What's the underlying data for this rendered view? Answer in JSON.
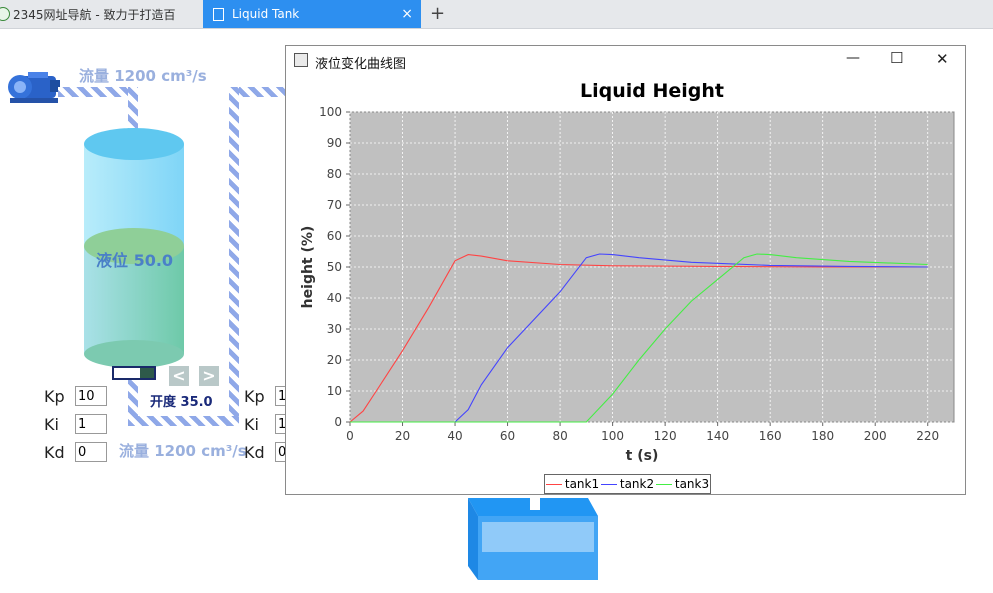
{
  "browser": {
    "tabs": [
      {
        "label": "2345网址导航 - 致力于打造百"
      },
      {
        "label": "Liquid Tank"
      }
    ],
    "close_label": "×",
    "newtab_label": "+"
  },
  "left_panel": {
    "flow_top": "流量 1200 cm³/s",
    "flow_bottom": "流量 1200 cm³/s",
    "level_label": "液位 50.0",
    "valve_label": "开度 35.0",
    "valve_fill": 0.35,
    "pid": [
      {
        "label": "Kp",
        "value": "10"
      },
      {
        "label": "Ki",
        "value": "1"
      },
      {
        "label": "Kd",
        "value": "0"
      }
    ],
    "pid2": [
      {
        "label": "Kp",
        "value": "1"
      },
      {
        "label": "Ki",
        "value": "1"
      },
      {
        "label": "Kd",
        "value": "0"
      }
    ]
  },
  "chart_window": {
    "title": "液位变化曲线图",
    "min_label": "—",
    "max_label": "☐",
    "close_label": "✕"
  },
  "chart_data": {
    "type": "line",
    "title": "Liquid Height",
    "xlabel": "t (s)",
    "ylabel": "height (%)",
    "xlim": [
      0,
      230
    ],
    "ylim": [
      0,
      100
    ],
    "xticks": [
      0,
      20,
      40,
      60,
      80,
      100,
      120,
      140,
      160,
      180,
      200,
      220
    ],
    "yticks": [
      0,
      10,
      20,
      30,
      40,
      50,
      60,
      70,
      80,
      90,
      100
    ],
    "grid": true,
    "legend": "bottom",
    "series": [
      {
        "name": "tank1",
        "color": "#ff4444",
        "x": [
          0,
          5,
          10,
          20,
          30,
          40,
          45,
          50,
          60,
          80,
          100,
          140,
          180,
          220
        ],
        "y": [
          0,
          3.5,
          10,
          23,
          37,
          52,
          54,
          53.5,
          52,
          50.8,
          50.4,
          50.2,
          50,
          50
        ]
      },
      {
        "name": "tank2",
        "color": "#4444ff",
        "x": [
          0,
          40,
          45,
          50,
          60,
          70,
          80,
          90,
          95,
          100,
          110,
          130,
          160,
          190,
          220
        ],
        "y": [
          0,
          0,
          4,
          12,
          24,
          33,
          42,
          53,
          54.2,
          54,
          53,
          51.5,
          50.5,
          50.2,
          50
        ]
      },
      {
        "name": "tank3",
        "color": "#44ee44",
        "x": [
          0,
          90,
          100,
          110,
          120,
          130,
          140,
          150,
          155,
          160,
          170,
          190,
          220
        ],
        "y": [
          0,
          0,
          9,
          20,
          30,
          39,
          46,
          53,
          54.2,
          54,
          53,
          51.8,
          50.8
        ]
      }
    ]
  }
}
